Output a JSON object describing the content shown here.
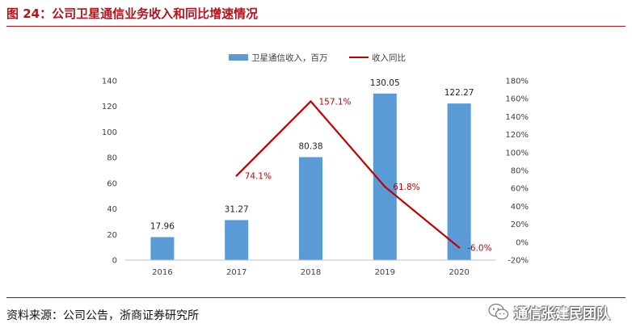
{
  "figure": {
    "title": "图 24：公司卫星通信业务收入和同比增速情况",
    "source": "资料来源：公司公告，浙商证券研究所",
    "watermark": "通信张建民团队"
  },
  "colors": {
    "bar": "#5b9bd5",
    "line": "#c00000",
    "title": "#b5121b"
  },
  "chart_data": {
    "type": "bar",
    "categories": [
      "2016",
      "2017",
      "2018",
      "2019",
      "2020"
    ],
    "series": [
      {
        "name": "卫星通信收入，百万",
        "type": "bar",
        "axis": "left",
        "values": [
          17.96,
          31.27,
          80.38,
          130.05,
          122.27
        ],
        "labels": [
          "17.96",
          "31.27",
          "80.38",
          "130.05",
          "122.27"
        ]
      },
      {
        "name": "收入同比",
        "type": "line",
        "axis": "right",
        "values": [
          null,
          74.1,
          157.1,
          61.8,
          -6.0
        ],
        "labels": [
          "",
          "74.1%",
          "157.1%",
          "61.8%",
          "-6.0%"
        ]
      }
    ],
    "y_left": {
      "min": 0,
      "max": 140,
      "step": 20,
      "ticks": [
        "0",
        "20",
        "40",
        "60",
        "80",
        "100",
        "120",
        "140"
      ]
    },
    "y_right": {
      "min": -20,
      "max": 180,
      "step": 20,
      "ticks": [
        "-20%",
        "0%",
        "20%",
        "40%",
        "60%",
        "80%",
        "100%",
        "120%",
        "140%",
        "160%",
        "180%"
      ]
    },
    "legend_position": "top-center",
    "grid": false
  }
}
